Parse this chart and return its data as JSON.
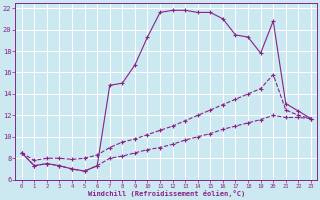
{
  "xlabel": "Windchill (Refroidissement éolien,°C)",
  "bg_color": "#cce8f0",
  "grid_color": "#aaccdd",
  "line_color": "#882288",
  "xlim_min": -0.5,
  "xlim_max": 23.5,
  "ylim_min": 6,
  "ylim_max": 22.5,
  "xticks": [
    0,
    1,
    2,
    3,
    4,
    5,
    6,
    7,
    8,
    9,
    10,
    11,
    12,
    13,
    14,
    15,
    16,
    17,
    18,
    19,
    20,
    21,
    22,
    23
  ],
  "yticks": [
    6,
    8,
    10,
    12,
    14,
    16,
    18,
    20,
    22
  ],
  "line1_x": [
    0,
    1,
    2,
    3,
    4,
    5,
    6,
    7,
    8,
    9,
    10,
    11,
    12,
    13,
    14,
    15,
    16,
    17,
    18,
    19,
    20,
    21,
    22,
    23
  ],
  "line1_y": [
    8.5,
    7.3,
    7.5,
    7.3,
    7.0,
    6.8,
    7.3,
    14.8,
    15.0,
    16.7,
    19.3,
    21.6,
    21.8,
    21.8,
    21.6,
    21.6,
    21.0,
    19.5,
    19.3,
    17.8,
    20.8,
    13.1,
    12.4,
    11.7
  ],
  "line2_x": [
    0,
    1,
    2,
    3,
    4,
    5,
    6,
    7,
    8,
    9,
    10,
    11,
    12,
    13,
    14,
    15,
    16,
    17,
    18,
    19,
    20,
    21,
    22,
    23
  ],
  "line2_y": [
    8.5,
    7.8,
    8.0,
    8.0,
    7.9,
    8.0,
    8.3,
    9.0,
    9.5,
    9.8,
    10.2,
    10.6,
    11.0,
    11.5,
    12.0,
    12.5,
    13.0,
    13.5,
    14.0,
    14.5,
    15.8,
    12.5,
    12.0,
    11.7
  ],
  "line3_x": [
    0,
    1,
    2,
    3,
    4,
    5,
    6,
    7,
    8,
    9,
    10,
    11,
    12,
    13,
    14,
    15,
    16,
    17,
    18,
    19,
    20,
    21,
    22,
    23
  ],
  "line3_y": [
    8.5,
    7.3,
    7.5,
    7.3,
    7.0,
    6.8,
    7.3,
    8.0,
    8.2,
    8.5,
    8.8,
    9.0,
    9.3,
    9.7,
    10.0,
    10.3,
    10.7,
    11.0,
    11.3,
    11.6,
    12.0,
    11.8,
    11.8,
    11.7
  ]
}
